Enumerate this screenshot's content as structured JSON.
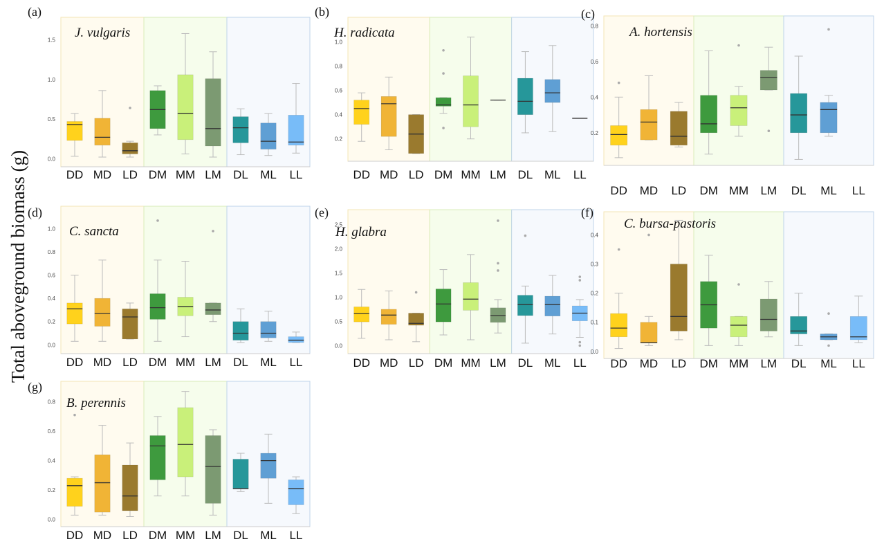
{
  "y_axis_label": "Total aboveground biomass (g)",
  "categories": [
    "DD",
    "MD",
    "LD",
    "DM",
    "MM",
    "LM",
    "DL",
    "ML",
    "LL"
  ],
  "colors": {
    "box": [
      "#ffd21c",
      "#f0b436",
      "#9a7a2e",
      "#3e9a3e",
      "#c9f07a",
      "#7c9a72",
      "#26979a",
      "#5f9fd4",
      "#78bcf8"
    ],
    "zone": [
      "#fffbef",
      "#f6fdec",
      "#f6f9fd"
    ],
    "zone_border": [
      "#f3e4b6",
      "#d8ecb8",
      "#bfd4ea"
    ]
  },
  "chart_data": [
    {
      "type": "box",
      "panel_label": "(a)",
      "title": "J. vulgaris",
      "categories": [
        "DD",
        "MD",
        "LD",
        "DM",
        "MM",
        "LM",
        "DL",
        "ML",
        "LL"
      ],
      "ylim": [
        -0.05,
        1.75
      ],
      "yticks": [
        0.0,
        0.5,
        1.0,
        1.5
      ],
      "ytick_labels": [
        "0.0",
        "0.5",
        "1.0",
        "1.5"
      ],
      "boxes": [
        {
          "min": 0.03,
          "q1": 0.23,
          "median": 0.43,
          "q3": 0.47,
          "max": 0.57,
          "outliers": []
        },
        {
          "min": 0.02,
          "q1": 0.17,
          "median": 0.27,
          "q3": 0.51,
          "max": 0.86,
          "outliers": []
        },
        {
          "min": 0.02,
          "q1": 0.06,
          "median": 0.1,
          "q3": 0.2,
          "max": 0.22,
          "outliers": [
            0.64
          ]
        },
        {
          "min": 0.3,
          "q1": 0.38,
          "median": 0.62,
          "q3": 0.86,
          "max": 0.92,
          "outliers": []
        },
        {
          "min": 0.06,
          "q1": 0.24,
          "median": 0.57,
          "q3": 1.06,
          "max": 1.58,
          "outliers": []
        },
        {
          "min": 0.02,
          "q1": 0.16,
          "median": 0.38,
          "q3": 1.01,
          "max": 1.35,
          "outliers": []
        },
        {
          "min": 0.05,
          "q1": 0.2,
          "median": 0.39,
          "q3": 0.53,
          "max": 0.63,
          "outliers": []
        },
        {
          "min": 0.04,
          "q1": 0.12,
          "median": 0.22,
          "q3": 0.45,
          "max": 0.57,
          "outliers": []
        },
        {
          "min": 0.07,
          "q1": 0.17,
          "median": 0.21,
          "q3": 0.55,
          "max": 0.95,
          "outliers": []
        }
      ]
    },
    {
      "type": "box",
      "panel_label": "(b)",
      "title": "H. radicata",
      "categories": [
        "DD",
        "MD",
        "LD",
        "DM",
        "MM",
        "LM",
        "DL",
        "ML",
        "LL"
      ],
      "ylim": [
        0.05,
        1.18
      ],
      "yticks": [
        0.2,
        0.4,
        0.6,
        0.8,
        1.0
      ],
      "ytick_labels": [
        "0.2",
        "0.4",
        "0.6",
        "0.8",
        "1.0"
      ],
      "boxes": [
        {
          "min": 0.18,
          "q1": 0.32,
          "median": 0.45,
          "q3": 0.52,
          "max": 0.58,
          "outliers": []
        },
        {
          "min": 0.11,
          "q1": 0.22,
          "median": 0.49,
          "q3": 0.55,
          "max": 0.71,
          "outliers": []
        },
        {
          "min": 0.08,
          "q1": 0.08,
          "median": 0.24,
          "q3": 0.4,
          "max": 0.4,
          "outliers": []
        },
        {
          "min": 0.41,
          "q1": 0.47,
          "median": 0.48,
          "q3": 0.54,
          "max": 0.54,
          "outliers": [
            0.93,
            0.74,
            0.29
          ]
        },
        {
          "min": 0.2,
          "q1": 0.3,
          "median": 0.48,
          "q3": 0.72,
          "max": 1.04,
          "outliers": []
        },
        {
          "min": 0.52,
          "q1": 0.52,
          "median": 0.52,
          "q3": 0.52,
          "max": 0.52,
          "outliers": []
        },
        {
          "min": 0.25,
          "q1": 0.4,
          "median": 0.51,
          "q3": 0.7,
          "max": 0.92,
          "outliers": []
        },
        {
          "min": 0.26,
          "q1": 0.5,
          "median": 0.58,
          "q3": 0.69,
          "max": 0.97,
          "outliers": []
        },
        {
          "min": 0.37,
          "q1": 0.37,
          "median": 0.37,
          "q3": 0.37,
          "max": 0.37,
          "outliers": []
        }
      ]
    },
    {
      "type": "box",
      "panel_label": "(c)",
      "title": "A. hortensis",
      "categories": [
        "DD",
        "MD",
        "LD",
        "DM",
        "MM",
        "LM",
        "DL",
        "ML",
        "LL"
      ],
      "ylim": [
        0.04,
        0.84
      ],
      "yticks": [
        0.2,
        0.4,
        0.6,
        0.8
      ],
      "ytick_labels": [
        "0.2",
        "0.4",
        "0.6",
        "0.8"
      ],
      "boxes": [
        {
          "min": 0.06,
          "q1": 0.13,
          "median": 0.19,
          "q3": 0.24,
          "max": 0.4,
          "outliers": [
            0.48
          ]
        },
        {
          "min": 0.16,
          "q1": 0.16,
          "median": 0.26,
          "q3": 0.33,
          "max": 0.52,
          "outliers": []
        },
        {
          "min": 0.12,
          "q1": 0.13,
          "median": 0.18,
          "q3": 0.32,
          "max": 0.37,
          "outliers": []
        },
        {
          "min": 0.08,
          "q1": 0.2,
          "median": 0.25,
          "q3": 0.41,
          "max": 0.66,
          "outliers": []
        },
        {
          "min": 0.18,
          "q1": 0.24,
          "median": 0.34,
          "q3": 0.41,
          "max": 0.46,
          "outliers": [
            0.69
          ]
        },
        {
          "min": 0.44,
          "q1": 0.44,
          "median": 0.51,
          "q3": 0.55,
          "max": 0.68,
          "outliers": [
            0.21
          ]
        },
        {
          "min": 0.05,
          "q1": 0.2,
          "median": 0.3,
          "q3": 0.42,
          "max": 0.63,
          "outliers": []
        },
        {
          "min": 0.18,
          "q1": 0.2,
          "median": 0.33,
          "q3": 0.37,
          "max": 0.41,
          "outliers": [
            0.78
          ]
        },
        {
          "empty": true
        }
      ]
    },
    {
      "type": "box",
      "panel_label": "(d)",
      "title": "C. sancta",
      "categories": [
        "DD",
        "MD",
        "LD",
        "DM",
        "MM",
        "LM",
        "DL",
        "ML",
        "LL"
      ],
      "ylim": [
        -0.04,
        1.17
      ],
      "yticks": [
        0.0,
        0.2,
        0.4,
        0.6,
        0.8,
        1.0
      ],
      "ytick_labels": [
        "0.0",
        "0.2",
        "0.4",
        "0.6",
        "0.8",
        "1.0"
      ],
      "boxes": [
        {
          "min": 0.03,
          "q1": 0.18,
          "median": 0.31,
          "q3": 0.36,
          "max": 0.6,
          "outliers": []
        },
        {
          "min": 0.03,
          "q1": 0.16,
          "median": 0.27,
          "q3": 0.4,
          "max": 0.73,
          "outliers": []
        },
        {
          "min": 0.05,
          "q1": 0.05,
          "median": 0.24,
          "q3": 0.31,
          "max": 0.36,
          "outliers": []
        },
        {
          "min": 0.03,
          "q1": 0.22,
          "median": 0.32,
          "q3": 0.44,
          "max": 0.73,
          "outliers": [
            1.07
          ]
        },
        {
          "min": 0.07,
          "q1": 0.25,
          "median": 0.33,
          "q3": 0.41,
          "max": 0.72,
          "outliers": []
        },
        {
          "min": 0.2,
          "q1": 0.26,
          "median": 0.3,
          "q3": 0.36,
          "max": 0.36,
          "outliers": [
            0.98
          ]
        },
        {
          "min": 0.02,
          "q1": 0.04,
          "median": 0.1,
          "q3": 0.2,
          "max": 0.31,
          "outliers": []
        },
        {
          "min": 0.03,
          "q1": 0.06,
          "median": 0.1,
          "q3": 0.2,
          "max": 0.29,
          "outliers": []
        },
        {
          "min": 0.02,
          "q1": 0.02,
          "median": 0.04,
          "q3": 0.07,
          "max": 0.11,
          "outliers": []
        }
      ]
    },
    {
      "type": "box",
      "panel_label": "(e)",
      "title": "H. glabra",
      "categories": [
        "DD",
        "MD",
        "LD",
        "DM",
        "MM",
        "LM",
        "DL",
        "ML",
        "LL"
      ],
      "ylim": [
        -0.08,
        2.75
      ],
      "yticks": [
        0.0,
        0.5,
        1.0,
        1.5,
        2.0,
        2.5
      ],
      "ytick_labels": [
        "0.0",
        "0.5",
        "1.0",
        "1.5",
        "2.0",
        "2.5"
      ],
      "boxes": [
        {
          "min": 0.15,
          "q1": 0.49,
          "median": 0.66,
          "q3": 0.8,
          "max": 1.16,
          "outliers": []
        },
        {
          "min": 0.12,
          "q1": 0.44,
          "median": 0.63,
          "q3": 0.75,
          "max": 1.13,
          "outliers": []
        },
        {
          "min": 0.08,
          "q1": 0.42,
          "median": 0.46,
          "q3": 0.67,
          "max": 0.67,
          "outliers": [
            1.1
          ]
        },
        {
          "min": 0.22,
          "q1": 0.49,
          "median": 0.86,
          "q3": 1.17,
          "max": 1.57,
          "outliers": []
        },
        {
          "min": 0.12,
          "q1": 0.73,
          "median": 0.96,
          "q3": 1.3,
          "max": 1.88,
          "outliers": []
        },
        {
          "min": 0.26,
          "q1": 0.48,
          "median": 0.62,
          "q3": 0.78,
          "max": 0.95,
          "outliers": [
            2.58,
            1.7,
            1.55
          ]
        },
        {
          "min": 0.05,
          "q1": 0.62,
          "median": 0.85,
          "q3": 1.04,
          "max": 1.23,
          "outliers": [
            2.27
          ]
        },
        {
          "min": 0.24,
          "q1": 0.61,
          "median": 0.85,
          "q3": 1.02,
          "max": 1.45,
          "outliers": []
        },
        {
          "min": 0.17,
          "q1": 0.51,
          "median": 0.67,
          "q3": 0.82,
          "max": 0.95,
          "outliers": [
            1.42,
            1.35,
            0.07,
            0.0
          ]
        }
      ]
    },
    {
      "type": "box",
      "panel_label": "(f)",
      "title": "C. bursa-pastoris",
      "categories": [
        "DD",
        "MD",
        "LD",
        "DM",
        "MM",
        "LM",
        "DL",
        "ML",
        "LL"
      ],
      "ylim": [
        -0.01,
        0.47
      ],
      "yticks": [
        0.0,
        0.1,
        0.2,
        0.3,
        0.4
      ],
      "ytick_labels": [
        "0.0",
        "0.1",
        "0.2",
        "0.3",
        "0.4"
      ],
      "boxes": [
        {
          "min": 0.01,
          "q1": 0.05,
          "median": 0.08,
          "q3": 0.13,
          "max": 0.2,
          "outliers": [
            0.35
          ]
        },
        {
          "min": 0.02,
          "q1": 0.03,
          "median": 0.03,
          "q3": 0.1,
          "max": 0.12,
          "outliers": [
            0.4
          ]
        },
        {
          "min": 0.04,
          "q1": 0.07,
          "median": 0.12,
          "q3": 0.3,
          "max": 0.45,
          "outliers": []
        },
        {
          "min": 0.02,
          "q1": 0.08,
          "median": 0.16,
          "q3": 0.24,
          "max": 0.33,
          "outliers": []
        },
        {
          "min": 0.02,
          "q1": 0.05,
          "median": 0.09,
          "q3": 0.12,
          "max": 0.12,
          "outliers": [
            0.23
          ]
        },
        {
          "min": 0.05,
          "q1": 0.07,
          "median": 0.11,
          "q3": 0.18,
          "max": 0.24,
          "outliers": []
        },
        {
          "min": 0.02,
          "q1": 0.06,
          "median": 0.07,
          "q3": 0.12,
          "max": 0.2,
          "outliers": []
        },
        {
          "min": 0.04,
          "q1": 0.04,
          "median": 0.05,
          "q3": 0.06,
          "max": 0.06,
          "outliers": [
            0.13,
            0.02
          ]
        },
        {
          "min": 0.03,
          "q1": 0.04,
          "median": 0.05,
          "q3": 0.12,
          "max": 0.19,
          "outliers": []
        }
      ]
    },
    {
      "type": "box",
      "panel_label": "(g)",
      "title": "B. perennis",
      "categories": [
        "DD",
        "MD",
        "LD",
        "DM",
        "MM",
        "LM",
        "DL",
        "ML",
        "LL"
      ],
      "ylim": [
        -0.02,
        0.92
      ],
      "yticks": [
        0.0,
        0.2,
        0.4,
        0.6,
        0.8
      ],
      "ytick_labels": [
        "0.0",
        "0.2",
        "0.4",
        "0.6",
        "0.8"
      ],
      "boxes": [
        {
          "min": 0.03,
          "q1": 0.09,
          "median": 0.23,
          "q3": 0.28,
          "max": 0.29,
          "outliers": [
            0.71
          ]
        },
        {
          "min": 0.03,
          "q1": 0.05,
          "median": 0.25,
          "q3": 0.44,
          "max": 0.64,
          "outliers": []
        },
        {
          "min": 0.02,
          "q1": 0.06,
          "median": 0.16,
          "q3": 0.37,
          "max": 0.52,
          "outliers": []
        },
        {
          "min": 0.16,
          "q1": 0.27,
          "median": 0.5,
          "q3": 0.57,
          "max": 0.7,
          "outliers": []
        },
        {
          "min": 0.16,
          "q1": 0.29,
          "median": 0.51,
          "q3": 0.76,
          "max": 0.87,
          "outliers": []
        },
        {
          "min": 0.03,
          "q1": 0.11,
          "median": 0.36,
          "q3": 0.57,
          "max": 0.61,
          "outliers": []
        },
        {
          "min": 0.19,
          "q1": 0.21,
          "median": 0.21,
          "q3": 0.41,
          "max": 0.45,
          "outliers": []
        },
        {
          "min": 0.11,
          "q1": 0.28,
          "median": 0.4,
          "q3": 0.45,
          "max": 0.58,
          "outliers": []
        },
        {
          "min": 0.04,
          "q1": 0.1,
          "median": 0.21,
          "q3": 0.27,
          "max": 0.29,
          "outliers": []
        }
      ]
    }
  ]
}
